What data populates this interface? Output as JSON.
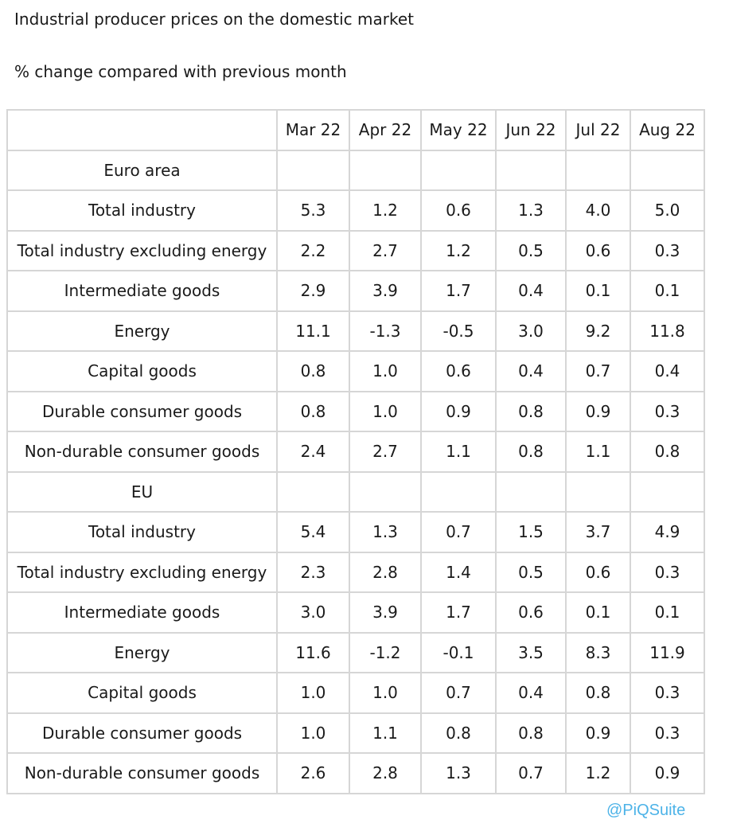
{
  "title": "Industrial producer prices on the domestic market",
  "subtitle": "% change compared with previous month",
  "columns": [
    "",
    "Mar 22",
    "Apr 22",
    "May 22",
    "Jun 22",
    "Jul 22",
    "Aug 22"
  ],
  "sections": [
    {
      "name": "Euro area",
      "rows": [
        {
          "label": "Total industry",
          "values": [
            "5.3",
            "1.2",
            "0.6",
            "1.3",
            "4.0",
            "5.0"
          ]
        },
        {
          "label": "Total industry excluding energy",
          "values": [
            "2.2",
            "2.7",
            "1.2",
            "0.5",
            "0.6",
            "0.3"
          ]
        },
        {
          "label": "Intermediate goods",
          "values": [
            "2.9",
            "3.9",
            "1.7",
            "0.4",
            "0.1",
            "0.1"
          ]
        },
        {
          "label": "Energy",
          "values": [
            "11.1",
            "-1.3",
            "-0.5",
            "3.0",
            "9.2",
            "11.8"
          ]
        },
        {
          "label": "Capital goods",
          "values": [
            "0.8",
            "1.0",
            "0.6",
            "0.4",
            "0.7",
            "0.4"
          ]
        },
        {
          "label": "Durable consumer goods",
          "values": [
            "0.8",
            "1.0",
            "0.9",
            "0.8",
            "0.9",
            "0.3"
          ]
        },
        {
          "label": "Non-durable consumer goods",
          "values": [
            "2.4",
            "2.7",
            "1.1",
            "0.8",
            "1.1",
            "0.8"
          ]
        }
      ]
    },
    {
      "name": "EU",
      "rows": [
        {
          "label": "Total industry",
          "values": [
            "5.4",
            "1.3",
            "0.7",
            "1.5",
            "3.7",
            "4.9"
          ]
        },
        {
          "label": "Total industry excluding energy",
          "values": [
            "2.3",
            "2.8",
            "1.4",
            "0.5",
            "0.6",
            "0.3"
          ]
        },
        {
          "label": "Intermediate goods",
          "values": [
            "3.0",
            "3.9",
            "1.7",
            "0.6",
            "0.1",
            "0.1"
          ]
        },
        {
          "label": "Energy",
          "values": [
            "11.6",
            "-1.2",
            "-0.1",
            "3.5",
            "8.3",
            "11.9"
          ]
        },
        {
          "label": "Capital goods",
          "values": [
            "1.0",
            "1.0",
            "0.7",
            "0.4",
            "0.8",
            "0.3"
          ]
        },
        {
          "label": "Durable consumer goods",
          "values": [
            "1.0",
            "1.1",
            "0.8",
            "0.8",
            "0.9",
            "0.3"
          ]
        },
        {
          "label": "Non-durable consumer goods",
          "values": [
            "2.6",
            "2.8",
            "1.3",
            "0.7",
            "1.2",
            "0.9"
          ]
        }
      ]
    }
  ],
  "watermark": "@PiQSuite",
  "colors": {
    "text": "#1a1a1a",
    "grid": "#d6d6d6",
    "watermark": "#4db3e8"
  }
}
